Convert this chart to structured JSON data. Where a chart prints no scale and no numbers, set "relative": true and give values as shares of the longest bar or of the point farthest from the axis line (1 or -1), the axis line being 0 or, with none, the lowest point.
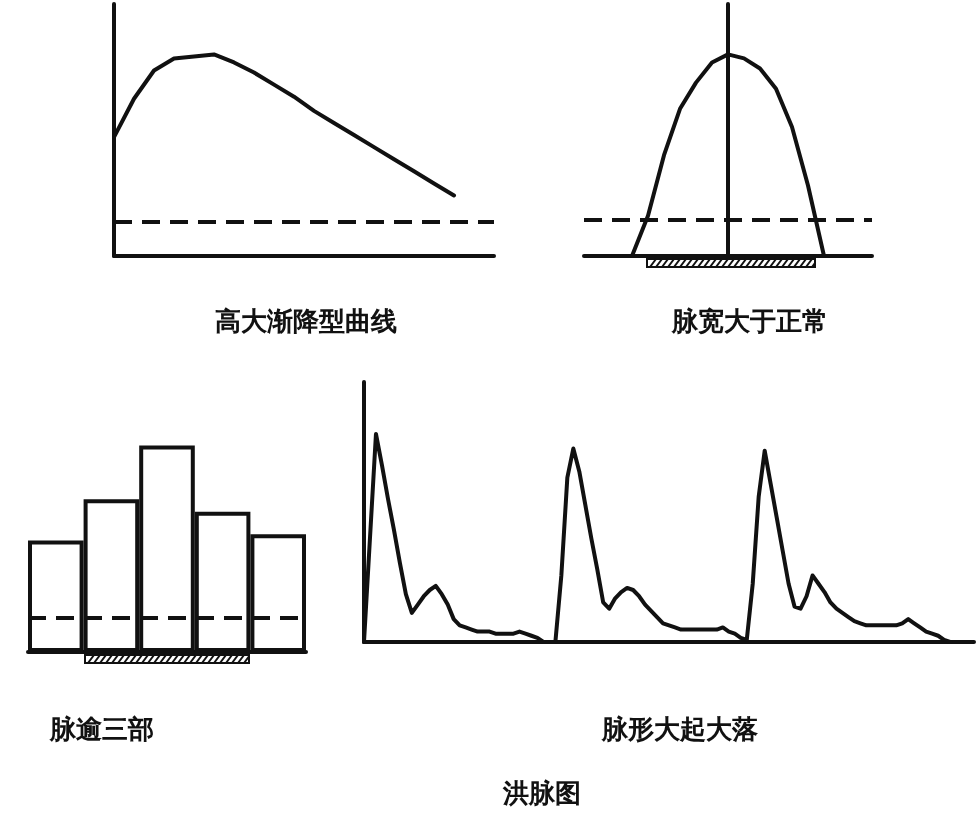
{
  "chart_data": [
    {
      "type": "line",
      "title": "高大渐降型曲线",
      "relative": true,
      "categories": [
        null,
        null,
        null,
        null,
        null,
        null,
        null,
        null,
        null,
        null,
        null,
        null,
        null,
        null,
        null,
        null,
        null,
        null,
        null,
        null
      ],
      "color": "#111111",
      "values": [
        0.59,
        0.78,
        0.92,
        0.98,
        0.99,
        1,
        0.96,
        0.91,
        0.85,
        0.79,
        0.72,
        0.66,
        0.6,
        0.54,
        0.48,
        0.42,
        0.36,
        0.3,
        null,
        null
      ],
      "ref_lines": [
        {
          "axis": "y",
          "value": 0.17,
          "line_style": "dashed"
        }
      ]
    },
    {
      "type": "line",
      "title": "脉宽大于正常",
      "relative": true,
      "categories": [
        null,
        null,
        null,
        null,
        null,
        null,
        null,
        null,
        null,
        null,
        null,
        null,
        null,
        null,
        null,
        null,
        null,
        null,
        null
      ],
      "color": "#111111",
      "values": [
        null,
        null,
        null,
        0,
        0.2,
        0.5,
        0.73,
        0.86,
        0.96,
        1,
        0.98,
        0.93,
        0.83,
        0.64,
        0.35,
        0,
        null,
        null,
        null
      ],
      "ref_lines": [
        {
          "axis": "y",
          "value": 0.18,
          "line_style": "dashed"
        }
      ]
    },
    {
      "type": "bar",
      "title": "脉逾三部",
      "relative": true,
      "categories": [
        null,
        null,
        null,
        null,
        null
      ],
      "color": "#ffffff",
      "values": [
        0.54,
        0.74,
        1,
        0.68,
        0.57
      ],
      "ref_lines": [
        {
          "axis": "y",
          "value": 0.17,
          "line_style": "dashed"
        }
      ]
    },
    {
      "type": "line",
      "title": "脉形大起大落",
      "relative": true,
      "categories": [
        null,
        null,
        null,
        null,
        null,
        null,
        null,
        null,
        null,
        null,
        null,
        null,
        null,
        null,
        null,
        null,
        null,
        null,
        null,
        null,
        null,
        null,
        null,
        null,
        null,
        null,
        null,
        null,
        null,
        null,
        null,
        null,
        null,
        null,
        null,
        null,
        null,
        null,
        null,
        null,
        null,
        null,
        null,
        null,
        null,
        null,
        null,
        null,
        null,
        null,
        null,
        null,
        null,
        null,
        null,
        null,
        null,
        null,
        null,
        null,
        null,
        null,
        null,
        null,
        null,
        null,
        null,
        null,
        null,
        null,
        null,
        null,
        null,
        null,
        null,
        null,
        null,
        null,
        null,
        null,
        null,
        null,
        null,
        null,
        null,
        null,
        null,
        null,
        null,
        null,
        null,
        null,
        null,
        null,
        null,
        null,
        null,
        null,
        null,
        null,
        null,
        null,
        null
      ],
      "color": "#111111",
      "values": [
        0,
        0.5,
        1,
        0.85,
        0.69,
        0.54,
        0.38,
        0.23,
        0.14,
        0.18,
        0.22,
        0.25,
        0.27,
        0.23,
        0.18,
        0.11,
        0.08,
        0.07,
        0.06,
        0.05,
        0.05,
        0.05,
        0.04,
        0.04,
        0.04,
        0.04,
        0.05,
        0.04,
        0.03,
        0.02,
        0,
        0,
        0,
        0.32,
        0.79,
        0.93,
        0.82,
        0.66,
        0.5,
        0.35,
        0.19,
        0.16,
        0.21,
        0.24,
        0.26,
        0.25,
        0.22,
        0.18,
        0.15,
        0.12,
        0.09,
        0.08,
        0.07,
        0.06,
        0.06,
        0.06,
        0.06,
        0.06,
        0.06,
        0.06,
        0.07,
        0.05,
        0.04,
        0.02,
        0.01,
        0.28,
        0.7,
        0.92,
        0.76,
        0.6,
        0.44,
        0.28,
        0.17,
        0.16,
        0.22,
        0.32,
        0.28,
        0.24,
        0.19,
        0.16,
        0.14,
        0.12,
        0.1,
        0.09,
        0.08,
        0.08,
        0.08,
        0.08,
        0.08,
        0.08,
        0.09,
        0.11,
        0.09,
        0.07,
        0.05,
        0.04,
        0.03,
        0.01,
        0,
        null,
        null,
        null,
        null
      ]
    },
    {
      "type": "other",
      "title": "洪脉图"
    }
  ]
}
